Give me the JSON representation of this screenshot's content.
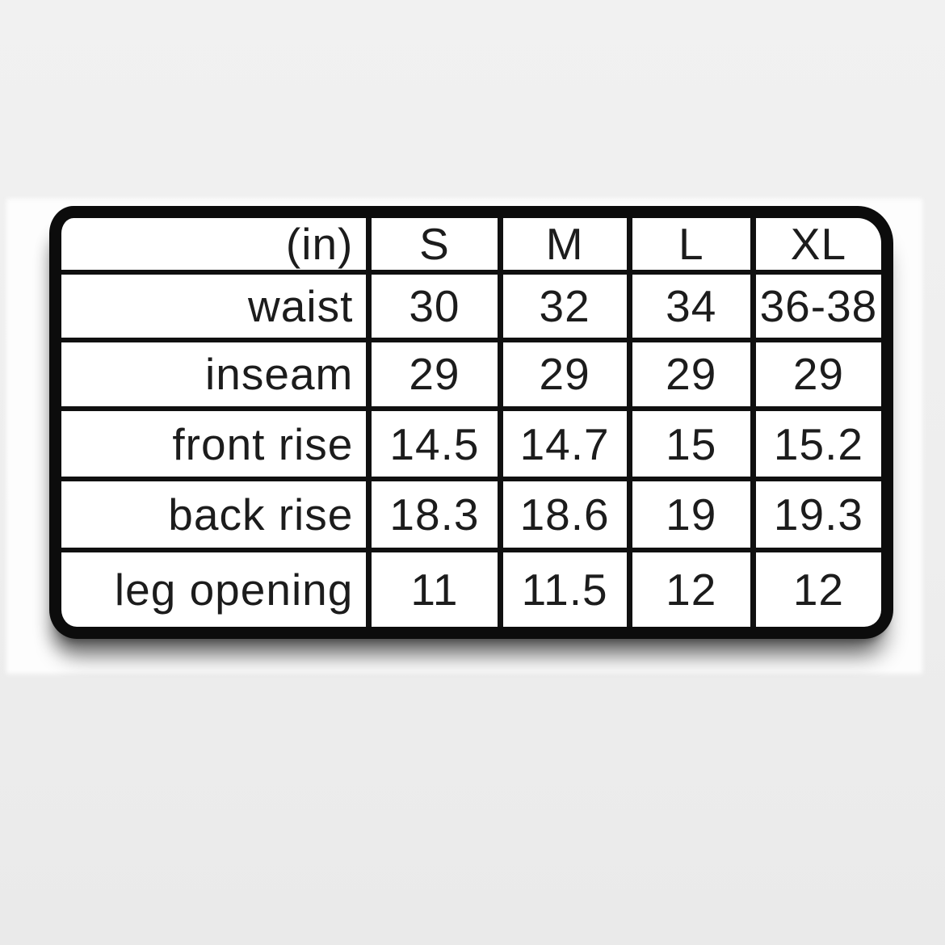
{
  "chart_data": {
    "type": "table",
    "unit_label": "(in)",
    "columns": [
      "S",
      "M",
      "L",
      "XL"
    ],
    "rows": [
      {
        "label": "waist",
        "values": [
          "30",
          "32",
          "34",
          "36-38"
        ]
      },
      {
        "label": "inseam",
        "values": [
          "29",
          "29",
          "29",
          "29"
        ]
      },
      {
        "label": "front rise",
        "values": [
          "14.5",
          "14.7",
          "15",
          "15.2"
        ]
      },
      {
        "label": "back rise",
        "values": [
          "18.3",
          "18.6",
          "19",
          "19.3"
        ]
      },
      {
        "label": "leg opening",
        "values": [
          "11",
          "11.5",
          "12",
          "12"
        ]
      }
    ]
  },
  "colors": {
    "ink": "#101010",
    "card_background": "#ffffff",
    "page_background": "#ededed",
    "photo_band": "#fdfdfd"
  }
}
